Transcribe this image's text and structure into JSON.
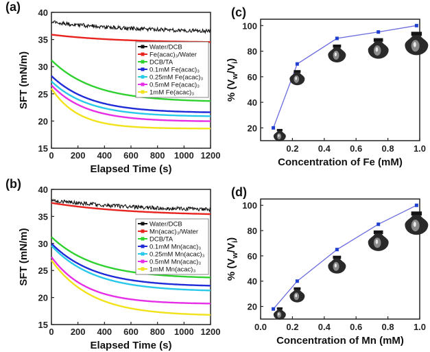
{
  "chart_data": [
    {
      "panel": "(a)",
      "type": "line",
      "xlabel": "Elapsed Time (s)",
      "ylabel": "SFT (mN/m)",
      "xlim": [
        0,
        1200
      ],
      "ylim": [
        15,
        40
      ],
      "xticks": [
        0,
        200,
        400,
        600,
        800,
        1000,
        1200
      ],
      "yticks": [
        15,
        20,
        25,
        30,
        35,
        40
      ],
      "legend_position": "top-right",
      "series": [
        {
          "name": "Water/DCB",
          "color": "#111111",
          "noisy": true,
          "start": 38.2,
          "end": 36.2,
          "tau": 700
        },
        {
          "name": "Fe(acac)₃/Water",
          "color": "#e8231f",
          "start": 35.9,
          "end": 34.4,
          "tau": 500
        },
        {
          "name": "DCB/TA",
          "color": "#2fd12f",
          "start": 31.2,
          "end": 23.5,
          "tau": 320
        },
        {
          "name": "0.1mM Fe(acac)₃",
          "color": "#1f2bd6",
          "start": 28.3,
          "end": 21.5,
          "tau": 290
        },
        {
          "name": "0.25mM Fe(acac)₃",
          "color": "#28c8ea",
          "start": 27.3,
          "end": 20.8,
          "tau": 280
        },
        {
          "name": "0.5mM Fe(acac)₃",
          "color": "#e62ee6",
          "start": 26.6,
          "end": 19.9,
          "tau": 260
        },
        {
          "name": "1mM Fe(acac)₃",
          "color": "#f2e21a",
          "start": 26.0,
          "end": 18.6,
          "tau": 200
        }
      ]
    },
    {
      "panel": "(b)",
      "type": "line",
      "xlabel": "Elapsed Time (s)",
      "ylabel": "SFT (mN/m)",
      "xlim": [
        0,
        1200
      ],
      "ylim": [
        15,
        40
      ],
      "xticks": [
        0,
        200,
        400,
        600,
        800,
        1000,
        1200
      ],
      "yticks": [
        15,
        20,
        25,
        30,
        35,
        40
      ],
      "legend_position": "top-right",
      "series": [
        {
          "name": "Water/DCB",
          "color": "#111111",
          "noisy": true,
          "start": 38.0,
          "end": 35.9,
          "tau": 700
        },
        {
          "name": "Mn(acac)₃/Water",
          "color": "#e8231f",
          "start": 37.5,
          "end": 35.1,
          "tau": 600
        },
        {
          "name": "DCB/TA",
          "color": "#2fd12f",
          "start": 31.2,
          "end": 23.5,
          "tau": 330
        },
        {
          "name": "0.1mM Mn(acac)₃",
          "color": "#1f2bd6",
          "start": 30.0,
          "end": 22.0,
          "tau": 320
        },
        {
          "name": "0.25mM Mn(acac)₃",
          "color": "#28c8ea",
          "start": 29.6,
          "end": 21.1,
          "tau": 320
        },
        {
          "name": "0.5mM Mn(acac)₃",
          "color": "#e62ee6",
          "start": 27.5,
          "end": 18.8,
          "tau": 260
        },
        {
          "name": "1mM Mn(acac)₃",
          "color": "#f2e21a",
          "start": 26.9,
          "end": 16.6,
          "tau": 300
        }
      ]
    },
    {
      "panel": "(c)",
      "type": "line",
      "xlabel": "Concentration of Fe (mM)",
      "ylabel": "% (V_w/V_i)",
      "xlim": [
        0.0,
        1.0
      ],
      "ylim": [
        10,
        105
      ],
      "xticks": [
        0.2,
        0.4,
        0.6,
        0.8,
        1.0
      ],
      "yticks": [
        20,
        40,
        60,
        80,
        100
      ],
      "line_color": "#6b6bdd",
      "marker_color": "#1f3fd0",
      "x": [
        0.08,
        0.23,
        0.48,
        0.74,
        0.98
      ],
      "y": [
        20,
        70,
        90,
        95,
        100
      ],
      "droplet_images_at_x": [
        0.12,
        0.23,
        0.48,
        0.74,
        0.98
      ]
    },
    {
      "panel": "(d)",
      "type": "line",
      "xlabel": "Concentration of Mn (mM)",
      "ylabel": "% (V_w/V_i)",
      "xlim": [
        0.0,
        1.0
      ],
      "ylim": [
        10,
        105
      ],
      "xticks": [
        0.0,
        0.2,
        0.4,
        0.6,
        0.8,
        1.0
      ],
      "yticks": [
        20,
        40,
        60,
        80,
        100
      ],
      "line_color": "#6b6bdd",
      "marker_color": "#1f3fd0",
      "x": [
        0.08,
        0.23,
        0.48,
        0.74,
        0.98
      ],
      "y": [
        18,
        40,
        65,
        85,
        100
      ],
      "droplet_images_at_x": [
        0.12,
        0.23,
        0.48,
        0.74,
        0.98
      ]
    }
  ]
}
